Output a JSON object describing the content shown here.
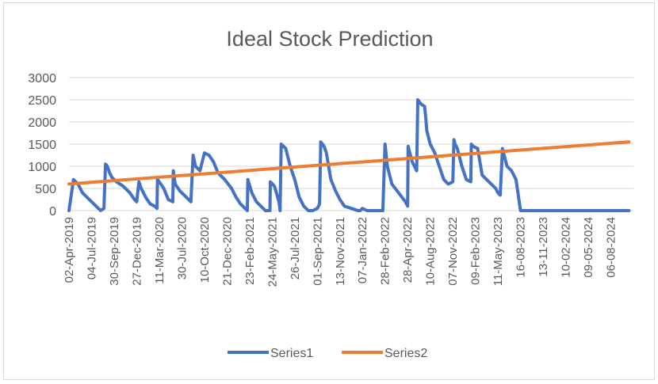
{
  "chart_data": {
    "type": "line",
    "title": "Ideal Stock Prediction",
    "xlabel": "",
    "ylabel": "",
    "ylim": [
      0,
      3000
    ],
    "yticks": [
      0,
      500,
      1000,
      1500,
      2000,
      2500,
      3000
    ],
    "grid": true,
    "legend_position": "bottom",
    "x_tick_labels": [
      "02-Apr-2019",
      "04-Jul-2019",
      "30-Sep-2019",
      "27-Dec-2019",
      "11-Mar-2020",
      "30-Jul-2020",
      "10-Oct-2020",
      "21-Dec-2020",
      "23-Feb-2021",
      "24-May-2021",
      "26-Jul-2021",
      "01-Sep-2021",
      "13-Nov-2021",
      "07-Jan-2022",
      "28-Feb-2022",
      "28-Apr-2022",
      "10-Aug-2022",
      "07-Nov-2022",
      "09-Feb-2023",
      "11-May-2023",
      "16-08-2023",
      "13-11-2023",
      "10-02-2024",
      "09-05-2024",
      "06-08-2024"
    ],
    "series": [
      {
        "name": "Series1",
        "color": "#4472c4",
        "x": [
          0,
          0.2,
          0.4,
          0.6,
          0.9,
          1.2,
          1.4,
          1.55,
          1.62,
          1.7,
          1.8,
          1.9,
          2.1,
          2.4,
          2.7,
          2.9,
          3.0,
          3.1,
          3.2,
          3.4,
          3.6,
          3.8,
          3.9,
          3.92,
          4.0,
          4.2,
          4.4,
          4.6,
          4.62,
          4.7,
          4.9,
          5.2,
          5.4,
          5.5,
          5.52,
          5.6,
          5.8,
          6.0,
          6.2,
          6.4,
          6.6,
          6.9,
          7.2,
          7.4,
          7.6,
          7.8,
          7.9,
          7.92,
          8.1,
          8.3,
          8.5,
          8.7,
          8.9,
          8.92,
          9.1,
          9.3,
          9.35,
          9.4,
          9.6,
          9.8,
          10.0,
          10.2,
          10.4,
          10.6,
          10.8,
          11.0,
          11.1,
          11.15,
          11.3,
          11.4,
          11.5,
          11.6,
          11.8,
          12.0,
          12.2,
          12.5,
          12.8,
          12.9,
          13.0,
          13.2,
          13.5,
          13.9,
          14.0,
          14.02,
          14.1,
          14.3,
          14.6,
          14.9,
          15.0,
          15.02,
          15.2,
          15.4,
          15.45,
          15.6,
          15.75,
          15.8,
          15.85,
          16.0,
          16.2,
          16.4,
          16.6,
          16.8,
          17.0,
          17.05,
          17.1,
          17.2,
          17.4,
          17.6,
          17.8,
          17.82,
          17.9,
          18.1,
          18.3,
          18.5,
          18.7,
          18.9,
          19.0,
          19.1,
          19.2,
          19.4,
          19.5,
          19.6,
          19.8,
          20.0,
          21.0,
          22.0,
          23.0,
          24.0,
          24.8
        ],
        "y": [
          0,
          700,
          600,
          400,
          250,
          100,
          0,
          50,
          1050,
          1000,
          850,
          750,
          650,
          550,
          400,
          250,
          200,
          650,
          500,
          300,
          150,
          100,
          50,
          700,
          650,
          500,
          250,
          200,
          900,
          600,
          450,
          300,
          200,
          1250,
          1200,
          1000,
          900,
          1300,
          1250,
          1100,
          850,
          700,
          500,
          300,
          150,
          50,
          0,
          700,
          400,
          200,
          100,
          0,
          0,
          650,
          550,
          200,
          0,
          1500,
          1400,
          1000,
          700,
          300,
          100,
          0,
          0,
          50,
          150,
          1550,
          1450,
          1300,
          1000,
          700,
          450,
          250,
          100,
          50,
          0,
          0,
          50,
          0,
          0,
          0,
          1500,
          1400,
          1000,
          600,
          400,
          200,
          100,
          1450,
          1100,
          900,
          2500,
          2400,
          2350,
          2100,
          1800,
          1500,
          1300,
          1000,
          700,
          600,
          650,
          1600,
          1500,
          1400,
          1000,
          700,
          650,
          1500,
          1450,
          1400,
          800,
          700,
          600,
          500,
          400,
          350,
          1400,
          1000,
          950,
          900,
          700,
          0,
          0,
          0,
          0,
          0,
          0
        ]
      },
      {
        "name": "Series2",
        "color": "#ed7d31",
        "x": [
          0,
          24.8
        ],
        "y": [
          600,
          1550
        ]
      }
    ]
  }
}
